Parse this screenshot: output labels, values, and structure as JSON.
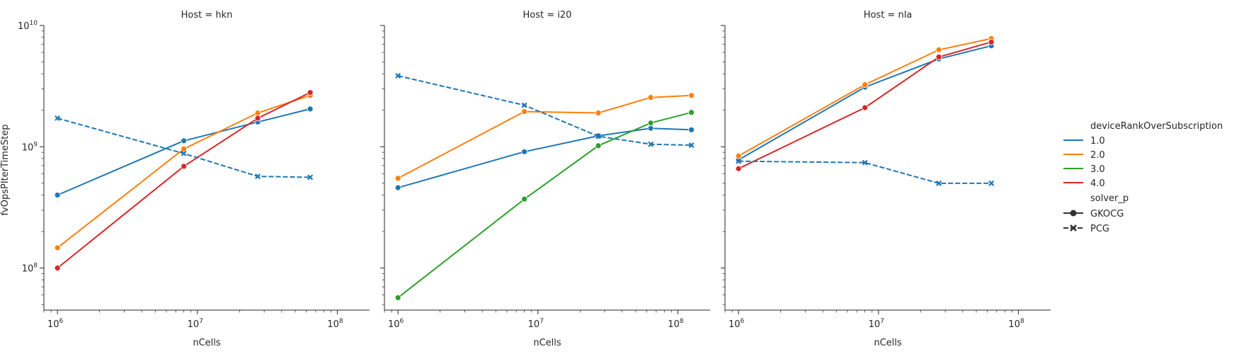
{
  "figure": {
    "ylabel": "fvOpsPIterTimeStep",
    "xlabel": "nCells"
  },
  "legend": {
    "hue_title": "deviceRankOverSubscription",
    "style_title": "solver_p",
    "hue_entries": [
      {
        "label": "1.0",
        "color": "#1f77b4"
      },
      {
        "label": "2.0",
        "color": "#ff7f0e"
      },
      {
        "label": "3.0",
        "color": "#2ca02c"
      },
      {
        "label": "4.0",
        "color": "#d62728"
      }
    ],
    "style_entries": [
      {
        "label": "GKOCG",
        "marker": "circle",
        "dash": "solid"
      },
      {
        "label": "PCG",
        "marker": "x",
        "dash": "dashed"
      }
    ]
  },
  "chart_data": [
    {
      "type": "line",
      "title": "Host = hkn",
      "xlabel": "nCells",
      "ylabel": "fvOpsPIterTimeStep",
      "xscale": "log",
      "yscale": "log",
      "xlim": [
        800000,
        170000000
      ],
      "ylim": [
        45000000,
        10000000000
      ],
      "x_ticks": [
        "10^6",
        "10^7",
        "10^8"
      ],
      "y_ticks": [
        "10^8",
        "10^9",
        "10^10"
      ],
      "series": [
        {
          "name": "1.0",
          "solver": "GKOCG",
          "color": "#1f77b4",
          "x": [
            1000000,
            8000000,
            27000000,
            64000000
          ],
          "y": [
            400000000,
            1120000000,
            1600000000,
            2050000000
          ]
        },
        {
          "name": "2.0",
          "solver": "GKOCG",
          "color": "#ff7f0e",
          "x": [
            1000000,
            8000000,
            27000000,
            64000000
          ],
          "y": [
            147000000,
            960000000,
            1900000000,
            2650000000
          ]
        },
        {
          "name": "4.0",
          "solver": "GKOCG",
          "color": "#d62728",
          "x": [
            1000000,
            8000000,
            27000000,
            64000000
          ],
          "y": [
            100000000,
            690000000,
            1720000000,
            2800000000
          ]
        },
        {
          "name": "1.0",
          "solver": "PCG",
          "color": "#1f77b4",
          "x": [
            1000000,
            8000000,
            27000000,
            64000000
          ],
          "y": [
            1720000000,
            880000000,
            570000000,
            560000000
          ]
        }
      ]
    },
    {
      "type": "line",
      "title": "Host = i20",
      "xlabel": "nCells",
      "xscale": "log",
      "yscale": "log",
      "xlim": [
        800000,
        170000000
      ],
      "ylim": [
        45000000,
        10000000000
      ],
      "x_ticks": [
        "10^6",
        "10^7",
        "10^8"
      ],
      "series": [
        {
          "name": "1.0",
          "solver": "GKOCG",
          "color": "#1f77b4",
          "x": [
            1000000,
            8000000,
            27000000,
            64000000,
            125000000
          ],
          "y": [
            460000000,
            910000000,
            1230000000,
            1420000000,
            1380000000
          ]
        },
        {
          "name": "2.0",
          "solver": "GKOCG",
          "color": "#ff7f0e",
          "x": [
            1000000,
            8000000,
            27000000,
            64000000,
            125000000
          ],
          "y": [
            550000000,
            1950000000,
            1900000000,
            2550000000,
            2650000000
          ]
        },
        {
          "name": "3.0",
          "solver": "GKOCG",
          "color": "#2ca02c",
          "x": [
            1000000,
            8000000,
            27000000,
            64000000,
            125000000
          ],
          "y": [
            57000000,
            370000000,
            1020000000,
            1570000000,
            1920000000
          ]
        },
        {
          "name": "1.0",
          "solver": "PCG",
          "color": "#1f77b4",
          "x": [
            1000000,
            8000000,
            27000000,
            64000000,
            125000000
          ],
          "y": [
            3850000000,
            2200000000,
            1220000000,
            1050000000,
            1030000000
          ]
        }
      ]
    },
    {
      "type": "line",
      "title": "Host = nla",
      "xlabel": "nCells",
      "xscale": "log",
      "yscale": "log",
      "xlim": [
        800000,
        170000000
      ],
      "ylim": [
        45000000,
        10000000000
      ],
      "x_ticks": [
        "10^6",
        "10^7",
        "10^8"
      ],
      "series": [
        {
          "name": "1.0",
          "solver": "GKOCG",
          "color": "#1f77b4",
          "x": [
            1000000,
            8000000,
            27000000,
            64000000
          ],
          "y": [
            780000000,
            3100000000,
            5300000000,
            6800000000
          ]
        },
        {
          "name": "2.0",
          "solver": "GKOCG",
          "color": "#ff7f0e",
          "x": [
            1000000,
            8000000,
            27000000,
            64000000
          ],
          "y": [
            840000000,
            3250000000,
            6300000000,
            7800000000
          ]
        },
        {
          "name": "4.0",
          "solver": "GKOCG",
          "color": "#d62728",
          "x": [
            1000000,
            8000000,
            27000000,
            64000000
          ],
          "y": [
            660000000,
            2100000000,
            5500000000,
            7300000000
          ]
        },
        {
          "name": "1.0",
          "solver": "PCG",
          "color": "#1f77b4",
          "x": [
            1000000,
            8000000,
            27000000,
            64000000
          ],
          "y": [
            760000000,
            740000000,
            500000000,
            500000000
          ]
        }
      ]
    }
  ]
}
